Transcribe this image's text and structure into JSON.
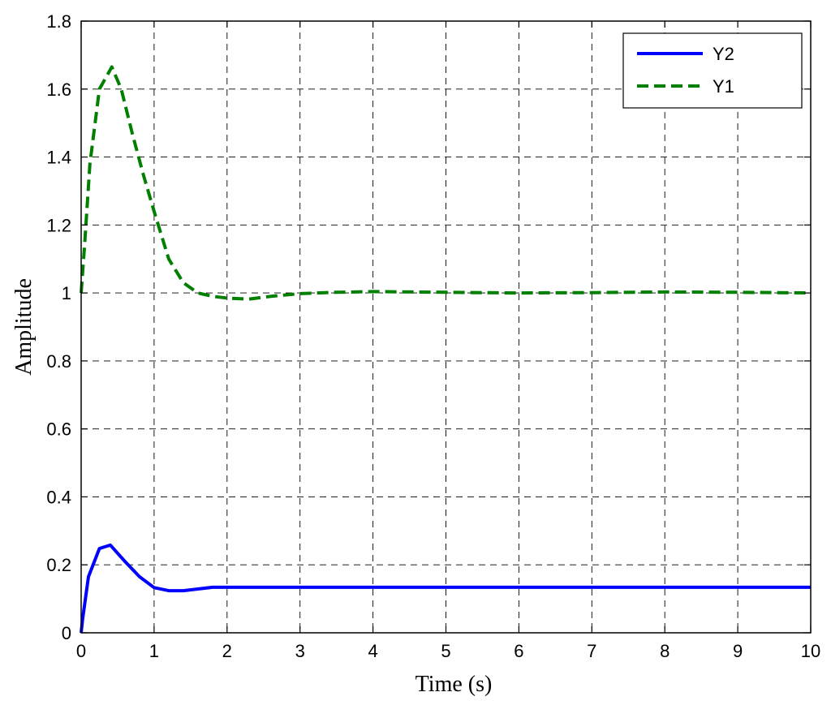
{
  "chart_data": {
    "type": "line",
    "title": "",
    "xlabel": "Time (s)",
    "ylabel": "Amplitude",
    "xlim": [
      0,
      10
    ],
    "ylim": [
      0,
      1.8
    ],
    "xticks": [
      0,
      1,
      2,
      3,
      4,
      5,
      6,
      7,
      8,
      9,
      10
    ],
    "yticks": [
      0,
      0.2,
      0.4,
      0.6,
      0.8,
      1,
      1.2,
      1.4,
      1.6,
      1.8
    ],
    "xtick_labels": [
      "0",
      "1",
      "2",
      "3",
      "4",
      "5",
      "6",
      "7",
      "8",
      "9",
      "10"
    ],
    "ytick_labels": [
      "0",
      "0.2",
      "0.4",
      "0.6",
      "0.8",
      "1",
      "1.2",
      "1.4",
      "1.6",
      "1.8"
    ],
    "grid": true,
    "legend_position": "top-right",
    "series": [
      {
        "name": "Y2",
        "style": "solid",
        "color": "#0000ff",
        "x": [
          0,
          0.02,
          0.1,
          0.25,
          0.4,
          0.6,
          0.8,
          1.0,
          1.2,
          1.4,
          1.6,
          1.8,
          2.0,
          3,
          4,
          5,
          6,
          7,
          8,
          9,
          10
        ],
        "y": [
          0,
          0.04,
          0.165,
          0.248,
          0.258,
          0.21,
          0.165,
          0.133,
          0.124,
          0.124,
          0.129,
          0.134,
          0.134,
          0.134,
          0.134,
          0.134,
          0.134,
          0.134,
          0.134,
          0.134,
          0.134
        ]
      },
      {
        "name": "Y1",
        "style": "dashed",
        "color": "#007f00",
        "x": [
          0,
          0.05,
          0.12,
          0.25,
          0.42,
          0.55,
          0.7,
          0.85,
          1.0,
          1.2,
          1.4,
          1.6,
          1.8,
          2.0,
          2.3,
          2.6,
          3.0,
          3.5,
          4.0,
          5.0,
          6.0,
          7.0,
          8.0,
          9.0,
          10.0
        ],
        "y": [
          1.0,
          1.15,
          1.38,
          1.6,
          1.665,
          1.6,
          1.47,
          1.35,
          1.24,
          1.1,
          1.03,
          1.0,
          0.99,
          0.985,
          0.982,
          0.99,
          0.998,
          1.002,
          1.004,
          1.002,
          1.0,
          1.001,
          1.003,
          1.002,
          1.0
        ]
      }
    ]
  }
}
